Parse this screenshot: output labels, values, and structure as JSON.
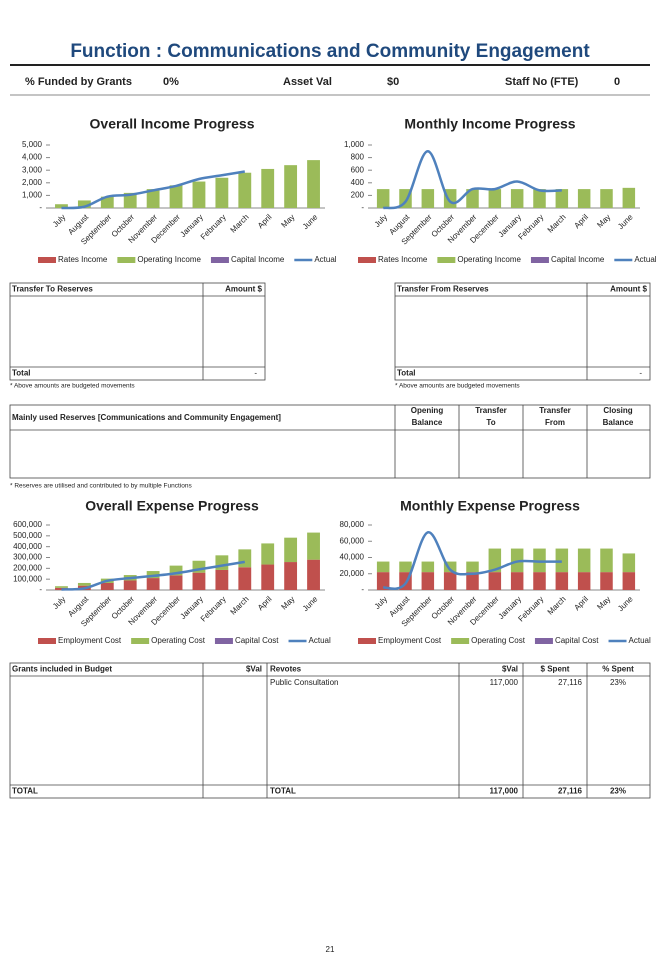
{
  "header": {
    "title": "Function : Communications and Community Engagement",
    "kpis": [
      {
        "label": "% Funded by Grants",
        "value": "0%"
      },
      {
        "label": "Asset Val",
        "value": "$0"
      },
      {
        "label": "Staff No (FTE)",
        "value": "0"
      }
    ]
  },
  "chart_data": [
    {
      "type": "bar",
      "title": "Overall Income Progress",
      "categories": [
        "July",
        "August",
        "September",
        "October",
        "November",
        "December",
        "January",
        "February",
        "March",
        "April",
        "May",
        "June"
      ],
      "series": [
        {
          "name": "Rates Income",
          "color": "#c0504d",
          "values": [
            0,
            0,
            0,
            0,
            0,
            0,
            0,
            0,
            0,
            0,
            0,
            0
          ]
        },
        {
          "name": "Operating Income",
          "color": "#9bbb59",
          "values": [
            300,
            600,
            900,
            1200,
            1500,
            1800,
            2100,
            2400,
            2800,
            3100,
            3400,
            3800
          ]
        },
        {
          "name": "Capital Income",
          "color": "#8064a2",
          "values": [
            0,
            0,
            0,
            0,
            0,
            0,
            0,
            0,
            0,
            0,
            0,
            0
          ]
        },
        {
          "name": "Actual",
          "color": "#4f81bd",
          "type": "line",
          "values": [
            0,
            100,
            900,
            1050,
            1400,
            1750,
            2300,
            2600,
            2900,
            null,
            null,
            null
          ]
        }
      ],
      "ylim": [
        0,
        5000
      ],
      "yticks": [
        {
          "value": 0,
          "label": "-"
        },
        {
          "value": 1000,
          "label": "1,000"
        },
        {
          "value": 2000,
          "label": "2,000"
        },
        {
          "value": 3000,
          "label": "3,000"
        },
        {
          "value": 4000,
          "label": "4,000"
        },
        {
          "value": 5000,
          "label": "5,000"
        }
      ]
    },
    {
      "type": "bar",
      "title": "Monthly Income Progress",
      "categories": [
        "July",
        "August",
        "September",
        "October",
        "November",
        "December",
        "January",
        "February",
        "March",
        "April",
        "May",
        "June"
      ],
      "series": [
        {
          "name": "Rates Income",
          "color": "#c0504d",
          "values": [
            0,
            0,
            0,
            0,
            0,
            0,
            0,
            0,
            0,
            0,
            0,
            0
          ]
        },
        {
          "name": "Operating Income",
          "color": "#9bbb59",
          "values": [
            300,
            300,
            300,
            300,
            300,
            300,
            300,
            300,
            300,
            300,
            300,
            320
          ]
        },
        {
          "name": "Capital Income",
          "color": "#8064a2",
          "values": [
            0,
            0,
            0,
            0,
            0,
            0,
            0,
            0,
            0,
            0,
            0,
            0
          ]
        },
        {
          "name": "Actual",
          "color": "#4f81bd",
          "type": "line",
          "values": [
            0,
            100,
            900,
            100,
            300,
            300,
            420,
            280,
            280,
            null,
            null,
            null
          ]
        }
      ],
      "ylim": [
        0,
        1000
      ],
      "yticks": [
        {
          "value": 0,
          "label": "-"
        },
        200,
        400,
        600,
        800,
        {
          "value": 1000,
          "label": "1,000"
        }
      ]
    },
    {
      "type": "bar",
      "title": "Overall Expense Progress",
      "categories": [
        "July",
        "August",
        "September",
        "October",
        "November",
        "December",
        "January",
        "February",
        "March",
        "April",
        "May",
        "June"
      ],
      "series": [
        {
          "name": "Employment Cost",
          "color": "#c0504d",
          "values": [
            20000,
            40000,
            65000,
            88000,
            110000,
            135000,
            160000,
            185000,
            210000,
            235000,
            258000,
            280000
          ]
        },
        {
          "name": "Operating Cost",
          "color": "#9bbb59",
          "values": [
            15000,
            25000,
            40000,
            50000,
            65000,
            90000,
            110000,
            135000,
            165000,
            195000,
            225000,
            250000
          ]
        },
        {
          "name": "Capital Cost",
          "color": "#8064a2",
          "values": [
            0,
            0,
            0,
            0,
            0,
            0,
            0,
            0,
            0,
            0,
            0,
            0
          ]
        },
        {
          "name": "Actual",
          "color": "#4f81bd",
          "type": "line",
          "values": [
            5000,
            15000,
            85000,
            110000,
            130000,
            155000,
            190000,
            225000,
            260000,
            null,
            null,
            null
          ]
        }
      ],
      "ylim": [
        0,
        600000
      ],
      "yticks": [
        {
          "value": 0,
          "label": "-"
        },
        {
          "value": 100000,
          "label": "100,000"
        },
        {
          "value": 200000,
          "label": "200,000"
        },
        {
          "value": 300000,
          "label": "300,000"
        },
        {
          "value": 400000,
          "label": "400,000"
        },
        {
          "value": 500000,
          "label": "500,000"
        },
        {
          "value": 600000,
          "label": "600,000"
        }
      ]
    },
    {
      "type": "bar",
      "title": "Monthly Expense Progress",
      "categories": [
        "July",
        "August",
        "September",
        "October",
        "November",
        "December",
        "January",
        "February",
        "March",
        "April",
        "May",
        "June"
      ],
      "series": [
        {
          "name": "Employment Cost",
          "color": "#c0504d",
          "values": [
            22000,
            22000,
            22000,
            22000,
            22000,
            22000,
            22000,
            22000,
            22000,
            22000,
            22000,
            22000
          ]
        },
        {
          "name": "Operating Cost",
          "color": "#9bbb59",
          "values": [
            13000,
            13000,
            13000,
            13000,
            13000,
            29000,
            29000,
            29000,
            29000,
            29000,
            29000,
            23000
          ]
        },
        {
          "name": "Capital Cost",
          "color": "#8064a2",
          "values": [
            0,
            0,
            0,
            0,
            0,
            0,
            0,
            0,
            0,
            0,
            0,
            0
          ]
        },
        {
          "name": "Actual",
          "color": "#4f81bd",
          "type": "line",
          "values": [
            3000,
            8000,
            71000,
            25000,
            20000,
            25000,
            35000,
            35000,
            35000,
            null,
            null,
            null
          ]
        }
      ],
      "ylim": [
        0,
        80000
      ],
      "yticks": [
        {
          "value": 0,
          "label": "-"
        },
        {
          "value": 20000,
          "label": "20,000"
        },
        {
          "value": 40000,
          "label": "40,000"
        },
        {
          "value": 60000,
          "label": "60,000"
        },
        {
          "value": 80000,
          "label": "80,000"
        }
      ]
    }
  ],
  "transfer_to": {
    "headers": [
      "Transfer To Reserves",
      "Amount $"
    ],
    "total": [
      "Total",
      "-"
    ],
    "note": "* Above amounts are budgeted movements"
  },
  "transfer_from": {
    "headers": [
      "Transfer From Reserves",
      "Amount $"
    ],
    "total": [
      "Total",
      "-"
    ],
    "note": "* Above amounts are budgeted movements"
  },
  "reserves": {
    "headers": [
      "Mainly used Reserves [Communications and Community Engagement]",
      "Opening Balance",
      "Transfer To",
      "Transfer From",
      "Closing Balance"
    ],
    "note": "* Reserves are utilised and contributed to by multiple Functions"
  },
  "grants": {
    "headers": [
      "Grants included in Budget",
      "$Val",
      "Revotes",
      "$Val",
      "$ Spent",
      "% Spent"
    ],
    "rows": [
      [
        "Public Consultation",
        "117,000",
        "27,116",
        "23%"
      ]
    ],
    "total": [
      "TOTAL",
      "TOTAL",
      "117,000",
      "27,116",
      "23%"
    ]
  },
  "page_number": "21"
}
